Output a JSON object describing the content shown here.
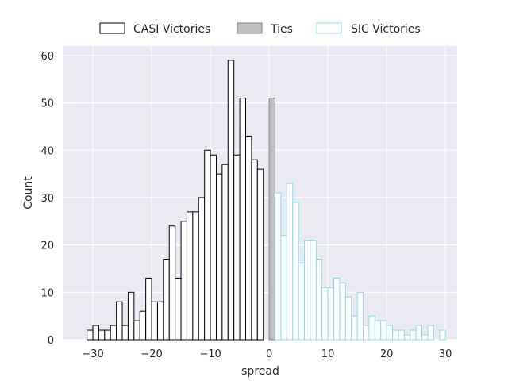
{
  "chart_data": {
    "type": "bar",
    "xlabel": "spread",
    "ylabel": "Count",
    "xlim": [
      -35,
      32
    ],
    "ylim": [
      0,
      62
    ],
    "bin_width": 1,
    "xticks": [
      -30,
      -20,
      -10,
      0,
      10,
      20,
      30
    ],
    "yticks": [
      0,
      10,
      20,
      30,
      40,
      50,
      60
    ],
    "grid": true,
    "legend_position": "top",
    "colors": {
      "background": "#EAEAF2",
      "grid": "#FFFFFF",
      "casi_edge": "#000000",
      "casi_fill": "#FFFFFF",
      "ties_fill": "#C0C0C0",
      "ties_edge": "#808080",
      "sic_edge": "#87DCEA",
      "sic_fill": "#FFFFFF",
      "text": "#262626"
    },
    "series": [
      {
        "name": "CASI Victories",
        "style": "casi",
        "x": [
          -31,
          -30,
          -29,
          -28,
          -27,
          -26,
          -25,
          -24,
          -23,
          -22,
          -21,
          -20,
          -19,
          -18,
          -17,
          -16,
          -15,
          -14,
          -13,
          -12,
          -11,
          -10,
          -9,
          -8,
          -7,
          -6,
          -5,
          -4,
          -3,
          -2,
          -1
        ],
        "values": [
          2,
          3,
          2,
          2,
          3,
          8,
          3,
          10,
          4,
          6,
          13,
          8,
          8,
          17,
          24,
          13,
          25,
          27,
          27,
          30,
          40,
          39,
          35,
          37,
          59,
          39,
          51,
          43,
          38,
          36,
          0
        ]
      },
      {
        "name": "Ties",
        "style": "ties",
        "x": [
          0
        ],
        "values": [
          51
        ]
      },
      {
        "name": "SIC Victories",
        "style": "sic",
        "x": [
          1,
          2,
          3,
          4,
          5,
          6,
          7,
          8,
          9,
          10,
          11,
          12,
          13,
          14,
          15,
          16,
          17,
          18,
          19,
          20,
          21,
          22,
          23,
          24,
          25,
          26,
          27,
          28,
          29
        ],
        "values": [
          31,
          22,
          33,
          29,
          16,
          21,
          21,
          17,
          11,
          11,
          13,
          12,
          9,
          5,
          10,
          3,
          5,
          4,
          4,
          3,
          2,
          2,
          1,
          2,
          3,
          1,
          3,
          0,
          2
        ]
      }
    ]
  }
}
